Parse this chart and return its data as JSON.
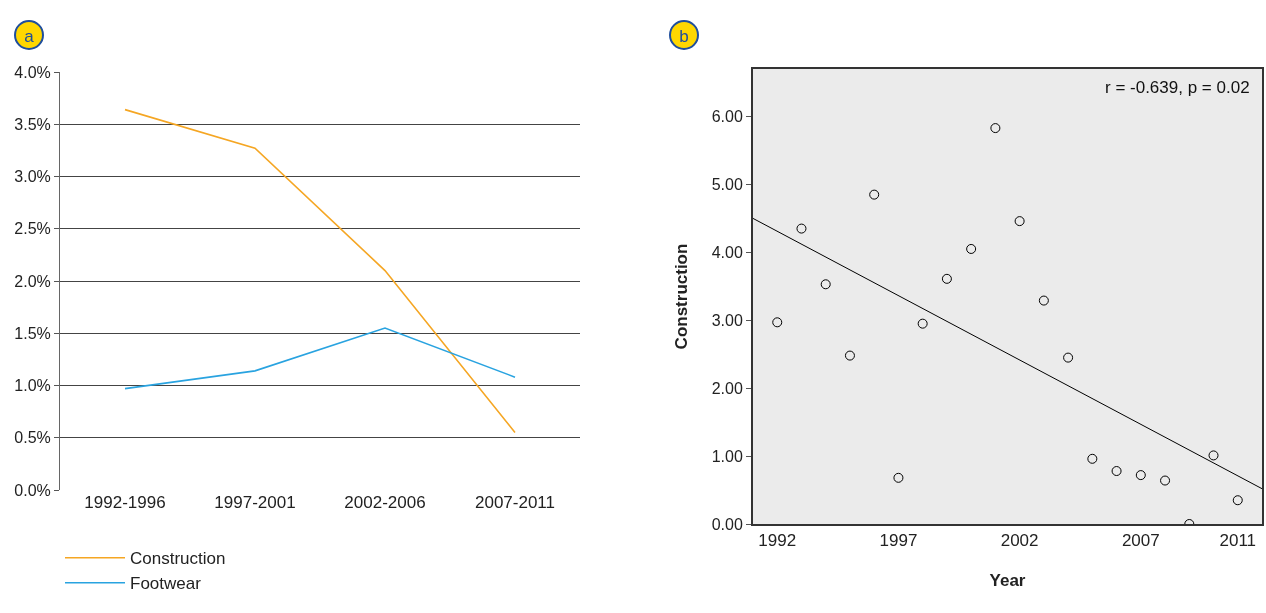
{
  "chart_data": [
    {
      "type": "line",
      "title": "a",
      "categories": [
        "1992-1996",
        "1997-2001",
        "2002-2006",
        "2007-2011"
      ],
      "series": [
        {
          "name": "Construction",
          "color": "#f5a623",
          "values": [
            3.64,
            3.27,
            2.1,
            0.55
          ]
        },
        {
          "name": "Footwear",
          "color": "#29a3e0",
          "values": [
            0.97,
            1.14,
            1.55,
            1.08
          ]
        }
      ],
      "ylim": [
        0,
        4
      ],
      "yticks": [
        {
          "value": 0,
          "label": "0.0%"
        },
        {
          "value": 0.5,
          "label": "0.5%"
        },
        {
          "value": 1,
          "label": "1.0%"
        },
        {
          "value": 1.5,
          "label": "1.5%"
        },
        {
          "value": 2,
          "label": "2.0%"
        },
        {
          "value": 2.5,
          "label": "2.5%"
        },
        {
          "value": 3,
          "label": "3.0%"
        },
        {
          "value": 3.5,
          "label": "3.5%"
        },
        {
          "value": 4,
          "label": "4.0%"
        }
      ],
      "grid": "y",
      "legend": "bottom",
      "marker": "none",
      "line_style": "solid"
    },
    {
      "type": "scatter",
      "title": "b",
      "xlabel": "Year",
      "ylabel": "Construction",
      "x": [
        1992,
        1993,
        1994,
        1995,
        1996,
        1997,
        1998,
        1999,
        2000,
        2001,
        2002,
        2003,
        2004,
        2005,
        2006,
        2007,
        2008,
        2009,
        2010,
        2011
      ],
      "series": [
        {
          "color": "#000000",
          "marker": "circle",
          "values": [
            2.97,
            4.35,
            3.53,
            2.48,
            4.85,
            0.68,
            2.95,
            3.61,
            4.05,
            5.83,
            4.46,
            3.29,
            2.45,
            0.96,
            0.78,
            0.72,
            0.64,
            0.0,
            1.01,
            0.35
          ]
        },
        {
          "type": "line",
          "color": "#000000",
          "marker": "none",
          "x": [
            1991,
            2012
          ],
          "values": [
            4.5,
            0.52
          ]
        }
      ],
      "xlim": [
        1991,
        2012
      ],
      "xticks": [
        1992,
        1997,
        2002,
        2007,
        2011
      ],
      "ylim": [
        0,
        6.7
      ],
      "yticks": [
        {
          "value": 0,
          "label": "0.00"
        },
        {
          "value": 1,
          "label": "1.00"
        },
        {
          "value": 2,
          "label": "2.00"
        },
        {
          "value": 3,
          "label": "3.00"
        },
        {
          "value": 4,
          "label": "4.00"
        },
        {
          "value": 5,
          "label": "5.00"
        },
        {
          "value": 6,
          "label": "6.00"
        }
      ],
      "grid": false,
      "legend": false,
      "annotations": [
        "r = -0.639, p = 0.02"
      ]
    }
  ]
}
